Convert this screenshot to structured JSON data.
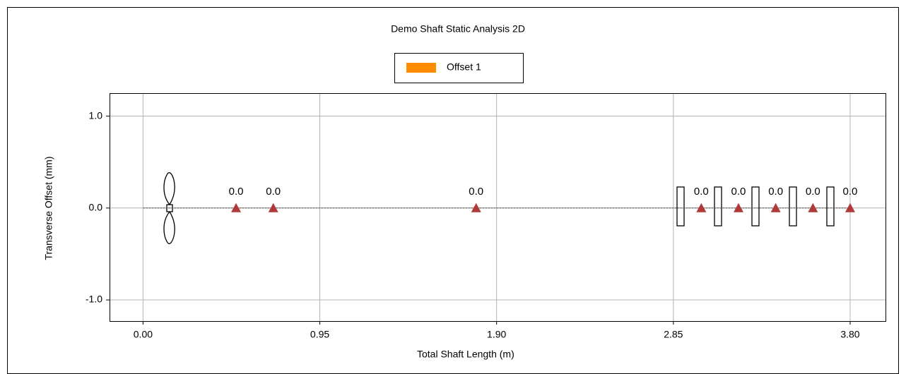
{
  "chart_data": {
    "type": "scatter",
    "title": "Demo Shaft Static Analysis 2D",
    "x_label": "Total Shaft Length (m)",
    "y_label": "Transverse Offset (mm)",
    "xlim": [
      -0.18,
      3.99
    ],
    "ylim": [
      -1.23,
      1.25
    ],
    "xticks": [
      {
        "value": 0,
        "label": "0.00"
      },
      {
        "value": 0.95,
        "label": "0.95"
      },
      {
        "value": 1.9,
        "label": "1.90"
      },
      {
        "value": 2.85,
        "label": "2.85"
      },
      {
        "value": 3.8,
        "label": "3.80"
      }
    ],
    "yticks": [
      {
        "value": 1,
        "label": "1.0"
      },
      {
        "value": 0,
        "label": "0.0"
      },
      {
        "value": -1,
        "label": "-1.0"
      }
    ],
    "grid": true,
    "series": [
      {
        "name": "Offset 1",
        "color": "#ff8c00",
        "x": [
          0,
          3.8
        ],
        "values": [
          0,
          0
        ]
      }
    ],
    "markers": {
      "color": "#b03a3a",
      "x": [
        0.5,
        0.7,
        1.79,
        3.0,
        3.2,
        3.4,
        3.6,
        3.8
      ],
      "values": [
        0,
        0,
        0,
        0,
        0,
        0,
        0,
        0
      ],
      "value_labels": [
        "0.0",
        "0.0",
        "0.0",
        "0.0",
        "0.0",
        "0.0",
        "0.0",
        "0.0"
      ]
    }
  }
}
